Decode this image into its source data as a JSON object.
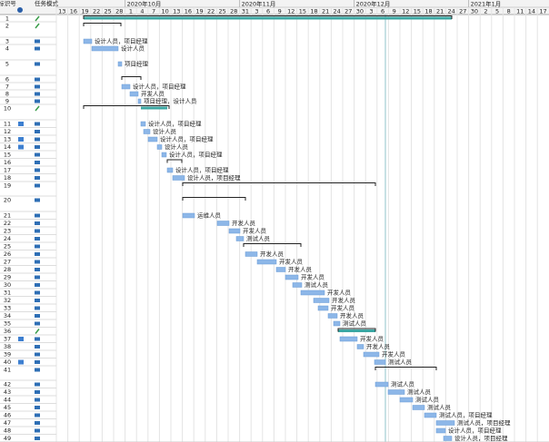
{
  "table": {
    "headers": [
      "标识号",
      "任务模式"
    ]
  },
  "timescale": {
    "months": [
      "2020年10月",
      "2020年11月",
      "2020年12月",
      "2021年1月"
    ],
    "days": [
      13,
      16,
      19,
      22,
      25,
      28,
      1,
      4,
      7,
      10,
      13,
      16,
      19,
      22,
      25,
      28,
      31,
      3,
      6,
      9,
      12,
      15,
      18,
      21,
      24,
      27,
      30,
      3,
      6,
      9,
      12,
      15,
      18,
      21,
      24,
      27,
      30,
      2,
      5,
      8,
      11,
      14,
      17
    ]
  },
  "rows": [
    {
      "id": 1
    },
    {
      "id": 2
    },
    {
      "id": 3,
      "label": "设计人员，项目经理"
    },
    {
      "id": 4,
      "label": "设计人员"
    },
    {
      "id": 5,
      "label": "项目经理"
    },
    {
      "id": 6
    },
    {
      "id": 7,
      "label": "设计人员，项目经理"
    },
    {
      "id": 8,
      "label": "开发人员"
    },
    {
      "id": 9,
      "label": "项目经理，设计人员"
    },
    {
      "id": 10
    },
    {
      "id": 11,
      "label": "设计人员，项目经理"
    },
    {
      "id": 12,
      "label": "设计人员"
    },
    {
      "id": 13,
      "label": "设计人员，项目经理"
    },
    {
      "id": 14,
      "label": "设计人员"
    },
    {
      "id": 15,
      "label": "设计人员，项目经理"
    },
    {
      "id": 16
    },
    {
      "id": 17,
      "label": "设计人员，项目经理"
    },
    {
      "id": 18,
      "label": "设计人员，项目经理"
    },
    {
      "id": 19
    },
    {
      "id": 20
    },
    {
      "id": 21,
      "label": "运维人员"
    },
    {
      "id": 22,
      "label": "开发人员"
    },
    {
      "id": 23,
      "label": "开发人员"
    },
    {
      "id": 24,
      "label": "测试人员"
    },
    {
      "id": 25
    },
    {
      "id": 26,
      "label": "开发人员"
    },
    {
      "id": 27,
      "label": "开发人员"
    },
    {
      "id": 28,
      "label": "开发人员"
    },
    {
      "id": 29,
      "label": "开发人员"
    },
    {
      "id": 30,
      "label": "测试人员"
    },
    {
      "id": 31,
      "label": "开发人员"
    },
    {
      "id": 32,
      "label": "开发人员"
    },
    {
      "id": 33,
      "label": "开发人员"
    },
    {
      "id": 34,
      "label": "开发人员"
    },
    {
      "id": 35,
      "label": "测试人员"
    },
    {
      "id": 36
    },
    {
      "id": 37,
      "label": "开发人员"
    },
    {
      "id": 38,
      "label": "开发人员"
    },
    {
      "id": 39,
      "label": "开发人员"
    },
    {
      "id": 40,
      "label": "测试人员"
    },
    {
      "id": 41
    },
    {
      "id": 42,
      "label": "测试人员"
    },
    {
      "id": 43,
      "label": "测试人员"
    },
    {
      "id": 44,
      "label": "测试人员"
    },
    {
      "id": 45,
      "label": "测试人员"
    },
    {
      "id": 46,
      "label": "测试人员，项目经理"
    },
    {
      "id": 47,
      "label": "测试人员，项目经理"
    },
    {
      "id": 48,
      "label": "设计人员，项目经理"
    },
    {
      "id": 49,
      "label": "设计人员，项目经理"
    }
  ]
}
